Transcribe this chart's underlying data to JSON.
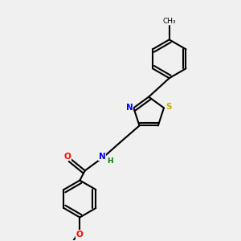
{
  "background_color": "#f0f0f0",
  "bond_color": "#000000",
  "atom_colors": {
    "N": "#0000ff",
    "O": "#ff0000",
    "S": "#ccaa00",
    "C": "#000000",
    "H": "#008000"
  },
  "title": "",
  "figsize": [
    3.0,
    3.0
  ],
  "dpi": 100
}
